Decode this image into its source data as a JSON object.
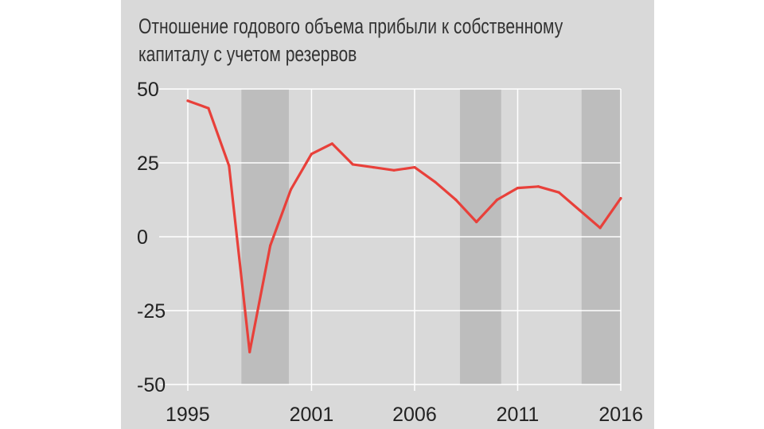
{
  "title_lines": [
    "Отношение годового объема прибыли к собственному",
    "капиталу с учетом резервов"
  ],
  "chart_data": {
    "type": "line",
    "title": "Отношение годового объема прибыли к собственному капиталу с учетом резервов",
    "xlabel": "",
    "ylabel": "",
    "xlim": [
      1995,
      2016
    ],
    "ylim": [
      -50,
      50
    ],
    "x_ticks": [
      "1995",
      "2001",
      "2006",
      "2011",
      "2016"
    ],
    "y_ticks": [
      "50",
      "25",
      "0",
      "-25",
      "-50"
    ],
    "series": [
      {
        "color": "#e8403a",
        "x": [
          1995,
          1996,
          1997,
          1998,
          1999,
          2000,
          2001,
          2002,
          2003,
          2004,
          2005,
          2006,
          2007,
          2008,
          2009,
          2010,
          2011,
          2012,
          2013,
          2014,
          2015,
          2016
        ],
        "y": [
          46,
          43.5,
          24,
          -39,
          -3,
          16,
          28,
          31.5,
          24.5,
          23.5,
          22.5,
          23.5,
          18.5,
          12.5,
          5,
          12.5,
          16.5,
          17,
          15,
          9,
          3,
          13
        ]
      }
    ],
    "shaded_periods": [
      [
        1997.6,
        1999.9
      ],
      [
        2008.2,
        2010.2
      ],
      [
        2014.1,
        2016
      ]
    ],
    "grid": "horizontal and vertical",
    "background_color": "#d9d9d9",
    "shade_color": "#bdbdbd"
  }
}
